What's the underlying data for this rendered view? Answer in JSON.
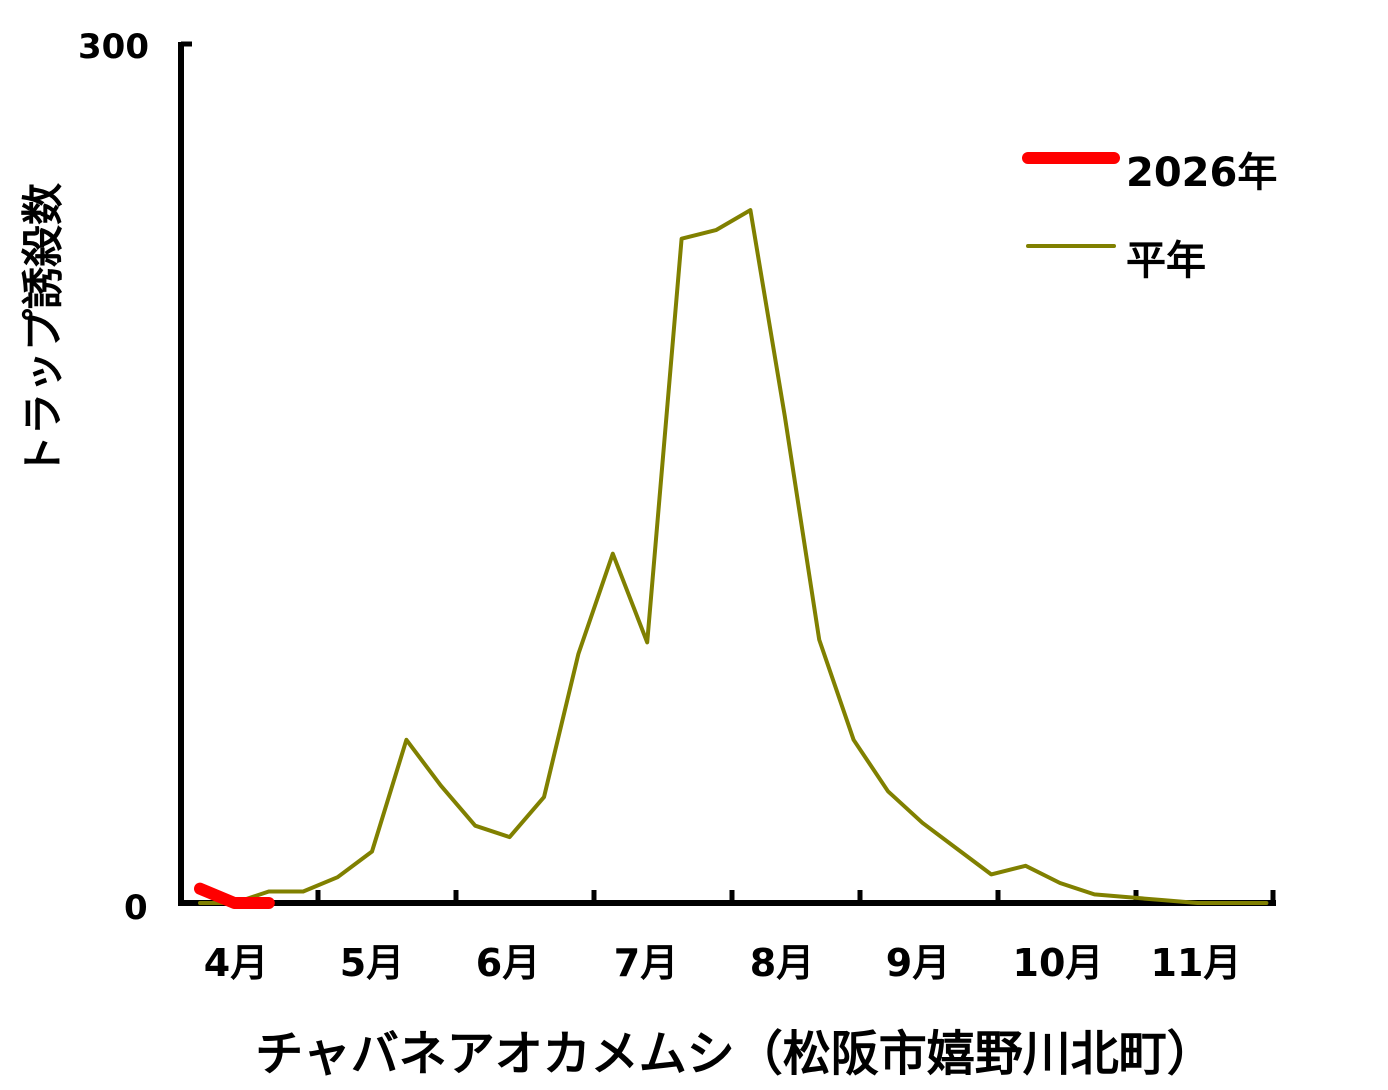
{
  "chart_data": {
    "type": "line",
    "title": "",
    "xlabel": "チャバネアオカメムシ（松阪市嬉野川北町）",
    "ylabel": "トラップ誘殺数",
    "ylim": [
      0,
      300
    ],
    "yticks": [
      "0",
      "300"
    ],
    "month_labels": [
      "4月",
      "5月",
      "6月",
      "7月",
      "8月",
      "9月",
      "10月",
      "11月"
    ],
    "legend_position": "top-right",
    "x_count": 32,
    "series": [
      {
        "name": "2026年",
        "color": "#ff0000",
        "values": [
          5,
          0,
          0
        ]
      },
      {
        "name": "平年",
        "color": "#808000",
        "values": [
          0,
          0,
          4,
          4,
          9,
          18,
          57,
          41,
          27,
          23,
          37,
          87,
          122,
          91,
          232,
          235,
          242,
          170,
          92,
          57,
          39,
          28,
          19,
          10,
          13,
          7,
          3,
          2,
          1,
          0,
          0,
          0
        ]
      }
    ]
  }
}
